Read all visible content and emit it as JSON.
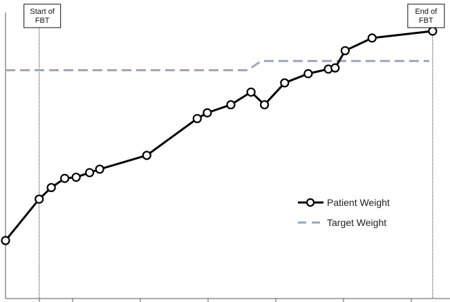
{
  "chart_data": {
    "type": "line",
    "xlim": [
      0,
      63
    ],
    "ylim": [
      0,
      100
    ],
    "grid": false,
    "legend_position": "lower-right",
    "series": [
      {
        "name": "Patient Weight",
        "color": "#000000",
        "marker": "open-circle",
        "x": [
          0,
          5,
          6.8,
          8.8,
          10.5,
          12.5,
          14,
          21,
          28.5,
          30,
          33.5,
          36.5,
          38.5,
          41.5,
          45,
          48,
          49,
          50.5,
          54.5,
          63.5
        ],
        "y": [
          9,
          27,
          32,
          36,
          36.5,
          38.5,
          40,
          46,
          62,
          64.5,
          68,
          73.5,
          68,
          77.5,
          81.5,
          83.5,
          84,
          91.5,
          97,
          100
        ]
      },
      {
        "name": "Target Weight",
        "color": "#9aa6b8",
        "style": "dashed",
        "x": [
          0,
          36,
          38,
          63
        ],
        "y": [
          83,
          83,
          87,
          87
        ]
      }
    ],
    "markers": [
      {
        "label": "Start of FBT",
        "x": 5
      },
      {
        "label": "End of FBT",
        "x": 63.5
      }
    ]
  }
}
